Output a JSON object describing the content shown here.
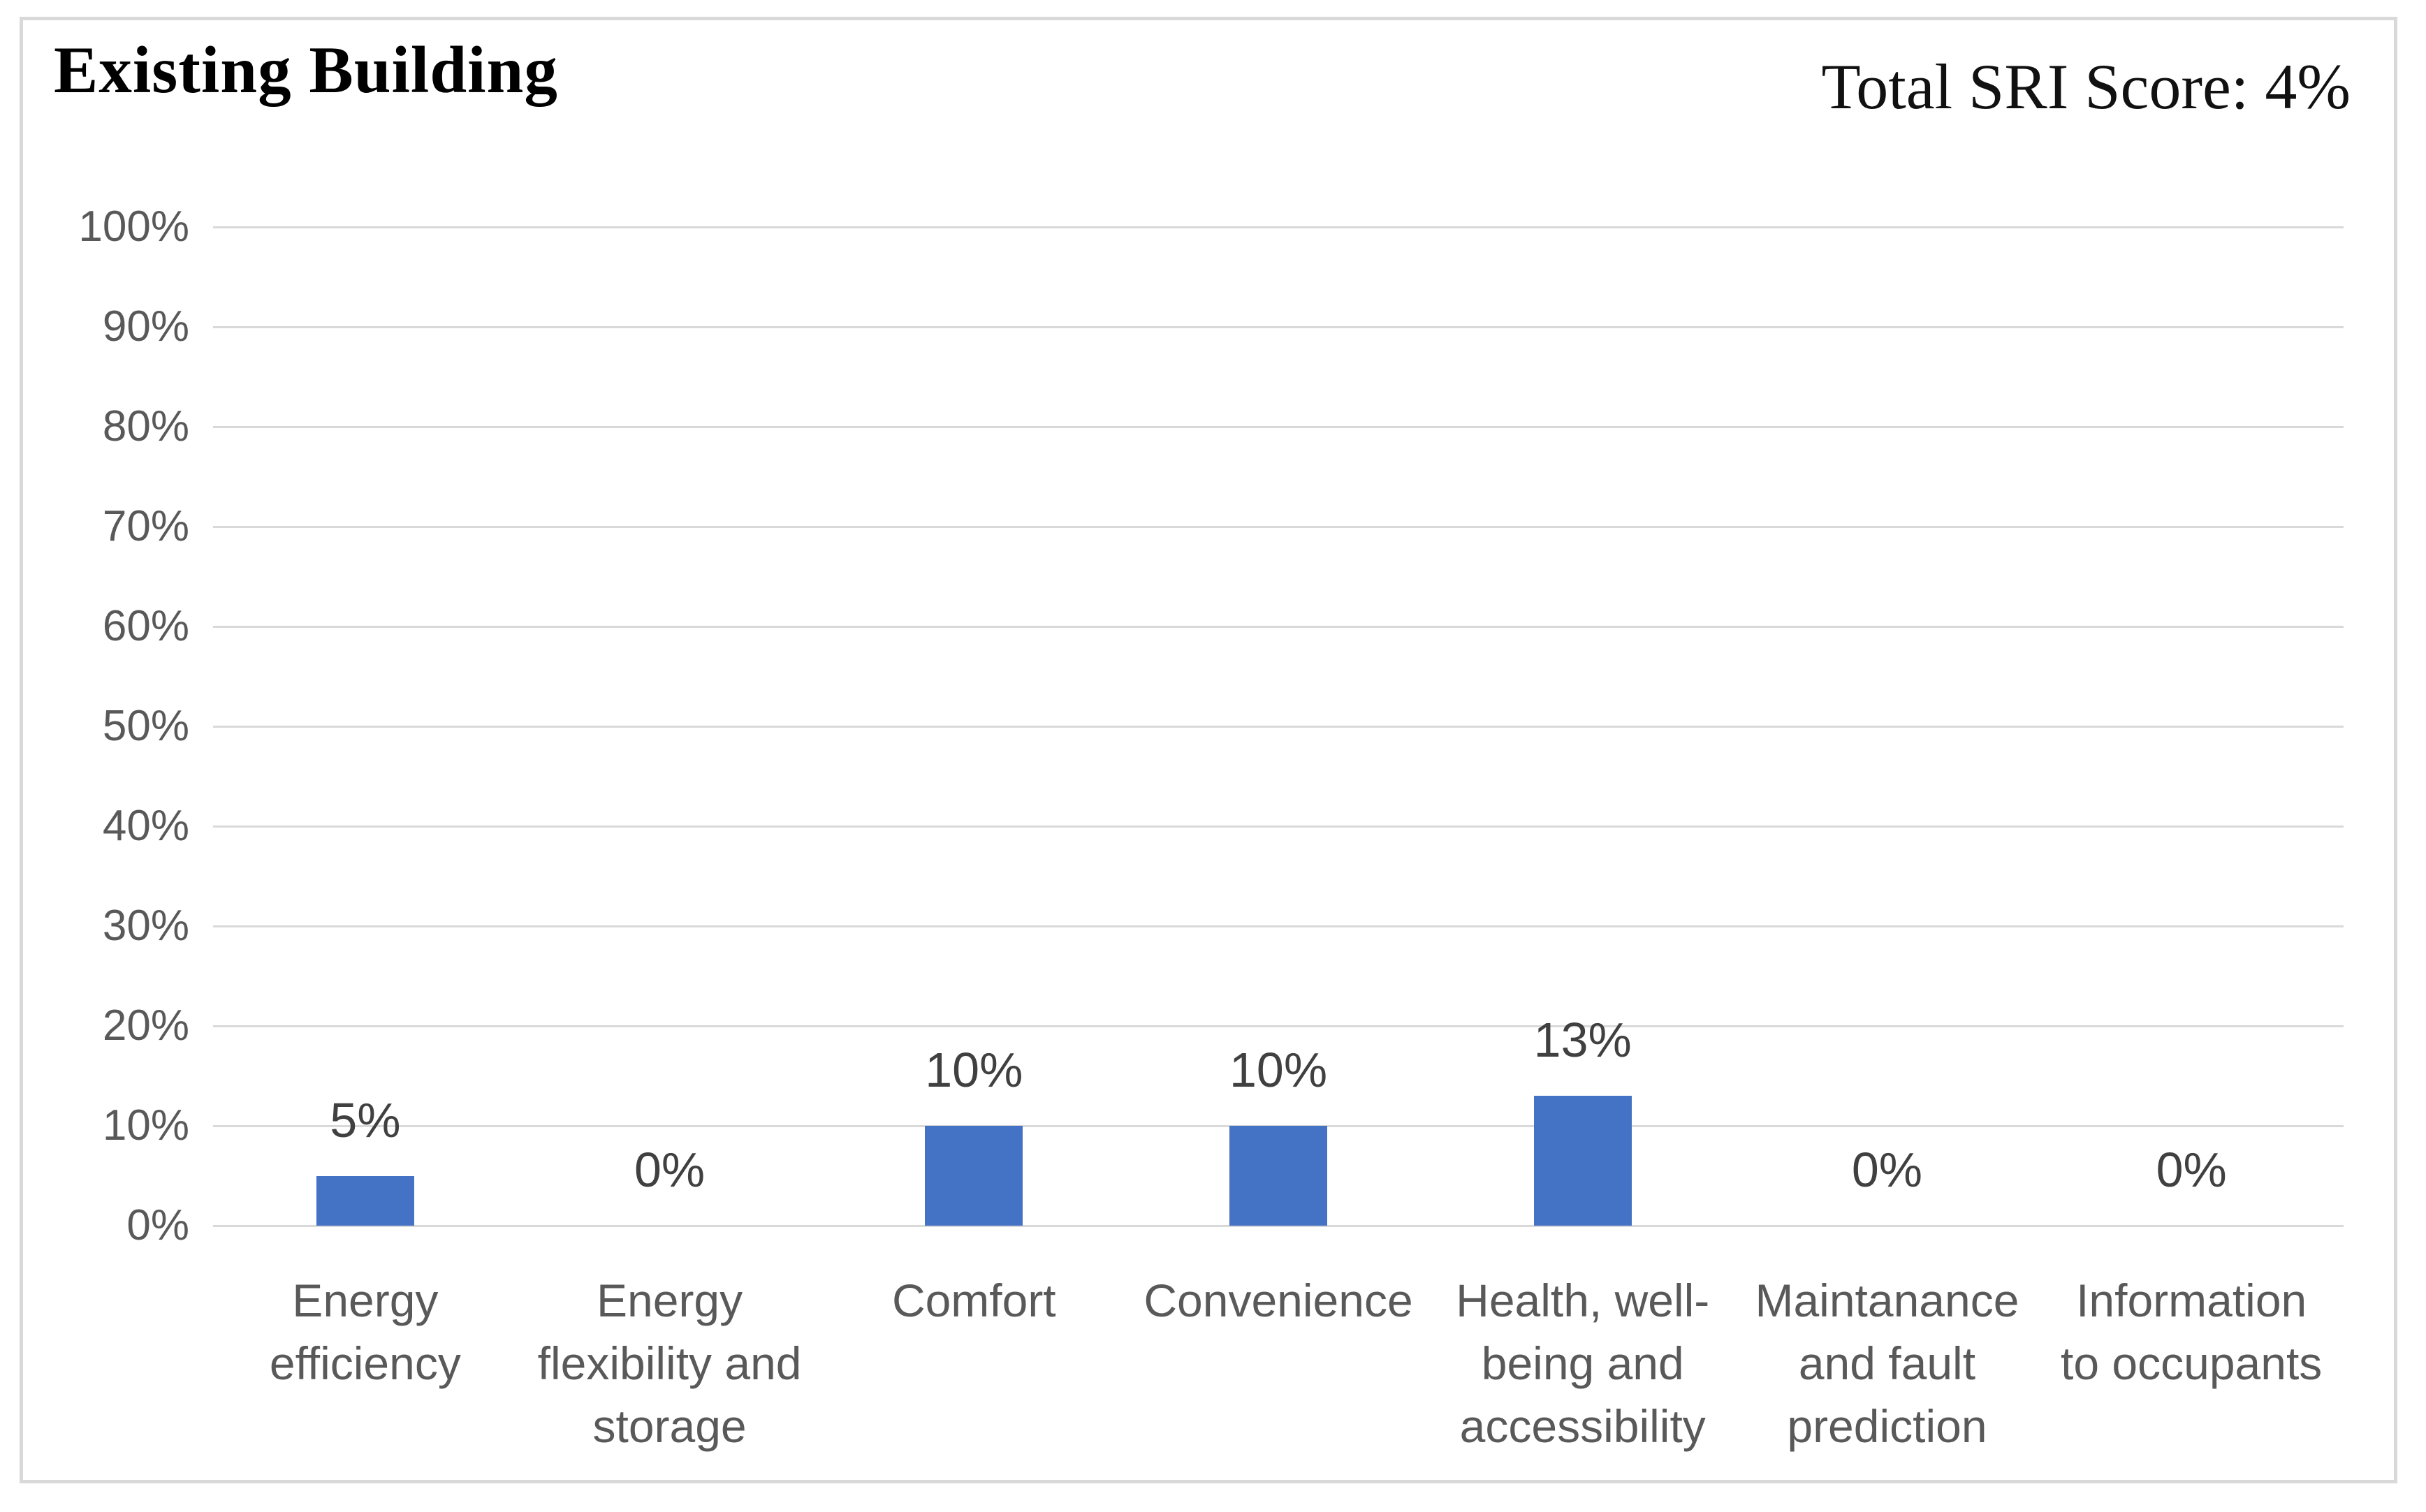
{
  "chart": {
    "title": "Existing Building",
    "score_label": "Total SRI Score: 4%"
  },
  "chart_data": {
    "type": "bar",
    "title": "Existing Building",
    "annotation": "Total SRI Score: 4%",
    "categories": [
      "Energy\nefficiency",
      "Energy\nflexibility and\nstorage",
      "Comfort",
      "Convenience",
      "Health, well-\nbeing and\naccessibility",
      "Maintanance\nand fault\nprediction",
      "Information\nto occupants"
    ],
    "values": [
      5,
      0,
      10,
      10,
      13,
      0,
      0
    ],
    "data_labels": [
      "5%",
      "0%",
      "10%",
      "10%",
      "13%",
      "0%",
      "0%"
    ],
    "yticks": [
      "100%",
      "90%",
      "80%",
      "70%",
      "60%",
      "50%",
      "40%",
      "30%",
      "20%",
      "10%",
      "0%"
    ],
    "ylim": [
      0,
      100
    ],
    "xlabel": "",
    "ylabel": "",
    "grid": true,
    "legend": false,
    "bar_color": "#4472C4",
    "gridline_color": "#D9D9D9",
    "frame_border_color": "#D9D9D9",
    "axis_label_color": "#595959",
    "data_label_color": "#404040",
    "title_color": "#000000"
  }
}
